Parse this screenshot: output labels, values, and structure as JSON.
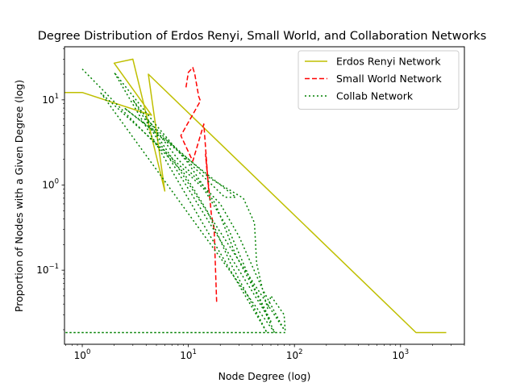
{
  "chart_data": {
    "type": "line",
    "title": "Degree Distribution of Erdos Renyi, Small World, and Collaboration Networks",
    "xlabel": "Node Degree (log)",
    "ylabel": "Proportion of Nodes with a Given Degree (log)",
    "xscale": "log",
    "yscale": "log",
    "xlim": [
      0.68,
      4000
    ],
    "ylim": [
      0.0135,
      42
    ],
    "grid": false,
    "legend_position": "top-right",
    "x_ticks": [
      {
        "value": 1,
        "base": "10",
        "exp": "0"
      },
      {
        "value": 10,
        "base": "10",
        "exp": "1"
      },
      {
        "value": 100,
        "base": "10",
        "exp": "2"
      },
      {
        "value": 1000,
        "base": "10",
        "exp": "3"
      }
    ],
    "y_ticks": [
      {
        "value": 0.1,
        "base": "10",
        "exp": "−1"
      },
      {
        "value": 1,
        "base": "10",
        "exp": "0"
      },
      {
        "value": 10,
        "base": "10",
        "exp": "1"
      }
    ],
    "series": [
      {
        "name": "Erdos Renyi Network",
        "color": "#bfbf00",
        "style": "solid",
        "points": [
          [
            0.66,
            12.2
          ],
          [
            1.0,
            12.2
          ],
          [
            4.5,
            6.6
          ],
          [
            2.0,
            27.0
          ],
          [
            3.0,
            30.0
          ],
          [
            6.0,
            0.85
          ],
          [
            4.2,
            20.0
          ],
          [
            1400,
            0.0185
          ],
          [
            2700,
            0.0185
          ]
        ]
      },
      {
        "name": "Small World Network",
        "color": "#ff0000",
        "style": "dashed",
        "points": [
          [
            9.5,
            14.0
          ],
          [
            10.0,
            21.0
          ],
          [
            11.0,
            24.0
          ],
          [
            11.5,
            20.0
          ],
          [
            12.5,
            11.0
          ],
          [
            13.0,
            9.7
          ],
          [
            8.5,
            3.8
          ],
          [
            11.0,
            1.9
          ],
          [
            14.0,
            5.2
          ],
          [
            15.5,
            0.9
          ],
          [
            14.5,
            2.3
          ],
          [
            16.5,
            0.45
          ],
          [
            17.5,
            0.3
          ],
          [
            18.5,
            0.04
          ]
        ]
      },
      {
        "name": "Collab Network",
        "color": "#008000",
        "style": "dotted",
        "points": [
          [
            1.0,
            23.0
          ],
          [
            9.0,
            1.4
          ],
          [
            15.0,
            0.5
          ],
          [
            25.0,
            0.12
          ],
          [
            40.0,
            0.04
          ],
          [
            55.0,
            0.0185
          ],
          [
            2.0,
            21.0
          ],
          [
            5.0,
            5.0
          ],
          [
            10.0,
            1.8
          ],
          [
            18.0,
            0.6
          ],
          [
            28.0,
            0.15
          ],
          [
            45.0,
            0.05
          ],
          [
            65.0,
            0.0185
          ],
          [
            1.5,
            12.0
          ],
          [
            6.0,
            2.5
          ],
          [
            14.0,
            0.9
          ],
          [
            24.0,
            0.3
          ],
          [
            38.0,
            0.08
          ],
          [
            60.0,
            0.025
          ],
          [
            3.0,
            10.0
          ],
          [
            8.0,
            2.0
          ],
          [
            20.0,
            0.6
          ],
          [
            30.0,
            0.25
          ],
          [
            50.0,
            0.06
          ],
          [
            80.0,
            0.02
          ],
          [
            4.0,
            6.0
          ],
          [
            12.0,
            1.5
          ],
          [
            22.0,
            0.72
          ],
          [
            28.0,
            0.72
          ],
          [
            2.5,
            8.0
          ],
          [
            7.0,
            3.0
          ],
          [
            16.0,
            1.2
          ],
          [
            33.0,
            0.7
          ],
          [
            42.0,
            0.36
          ],
          [
            44.0,
            0.12
          ],
          [
            50.0,
            0.06
          ],
          [
            56.0,
            0.035
          ],
          [
            60.0,
            0.05
          ],
          [
            80.0,
            0.03
          ],
          [
            82.0,
            0.0185
          ],
          [
            0.68,
            0.0185
          ],
          [
            72.0,
            0.0185
          ]
        ]
      }
    ]
  }
}
